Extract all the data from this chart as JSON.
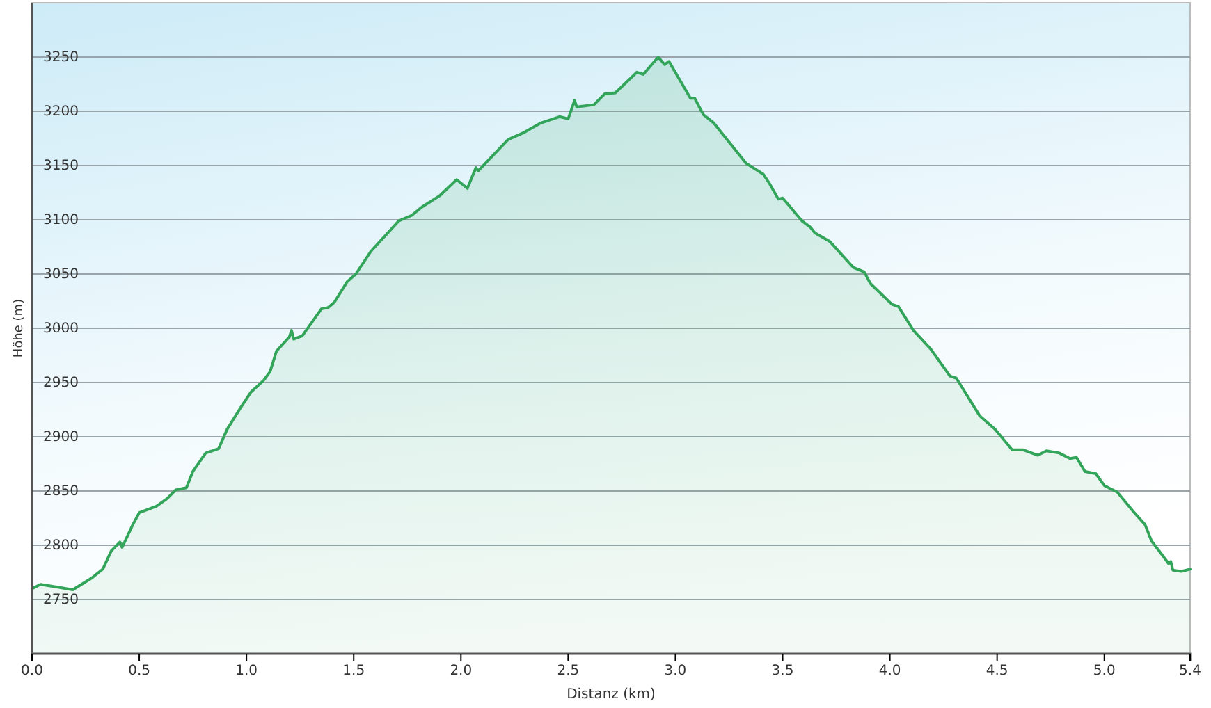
{
  "chart_data": {
    "type": "area",
    "xlabel": "Distanz  (km)",
    "ylabel": "Höhe (m)",
    "xlim": [
      0,
      5.4
    ],
    "ylim": [
      2700,
      3300
    ],
    "xticks": [
      {
        "value": 0,
        "label": "0.0"
      },
      0.5,
      {
        "value": 1,
        "label": "1.0"
      },
      1.5,
      {
        "value": 2,
        "label": "2.0"
      },
      2.5,
      {
        "value": 3,
        "label": "3.0"
      },
      3.5,
      {
        "value": 4,
        "label": "4.0"
      },
      4.5,
      {
        "value": 5,
        "label": "5.0"
      },
      5.4
    ],
    "yticks": [
      2750,
      2800,
      2850,
      2900,
      2950,
      3000,
      3050,
      3100,
      3150,
      3200,
      3250
    ],
    "grid": "y",
    "series": [
      {
        "color": "#33a55a",
        "x": [
          0,
          0.04,
          0.13,
          0.19,
          0.28,
          0.33,
          0.37,
          0.41,
          0.42,
          0.47,
          0.5,
          0.58,
          0.63,
          0.67,
          0.72,
          0.75,
          0.81,
          0.87,
          0.91,
          0.97,
          1.02,
          1.08,
          1.11,
          1.14,
          1.2,
          1.21,
          1.22,
          1.26,
          1.35,
          1.38,
          1.41,
          1.47,
          1.51,
          1.58,
          1.65,
          1.71,
          1.77,
          1.82,
          1.9,
          1.98,
          2.03,
          2.07,
          2.08,
          2.22,
          2.29,
          2.37,
          2.46,
          2.5,
          2.53,
          2.54,
          2.62,
          2.67,
          2.72,
          2.82,
          2.85,
          2.92,
          2.95,
          2.97,
          3.07,
          3.09,
          3.13,
          3.18,
          3.33,
          3.41,
          3.44,
          3.48,
          3.5,
          3.59,
          3.63,
          3.65,
          3.72,
          3.83,
          3.88,
          3.91,
          4.01,
          4.04,
          4.11,
          4.19,
          4.28,
          4.31,
          4.42,
          4.49,
          4.57,
          4.62,
          4.69,
          4.73,
          4.79,
          4.84,
          4.87,
          4.91,
          4.96,
          5,
          5.06,
          5.14,
          5.19,
          5.22,
          5.27,
          5.3,
          5.31,
          5.32,
          5.36,
          5.4
        ],
        "values": [
          2760,
          2764,
          2761,
          2759,
          2770,
          2778,
          2795,
          2803,
          2798,
          2819,
          2830,
          2836,
          2843,
          2851,
          2853,
          2868,
          2885,
          2889,
          2907,
          2926,
          2941,
          2952,
          2960,
          2979,
          2992,
          2998,
          2990,
          2993,
          3018,
          3019,
          3024,
          3043,
          3050,
          3071,
          3086,
          3099,
          3104,
          3112,
          3122,
          3137,
          3129,
          3148,
          3145,
          3174,
          3180,
          3189,
          3195,
          3193,
          3210,
          3204,
          3206,
          3216,
          3217,
          3236,
          3234,
          3250,
          3243,
          3246,
          3212,
          3212,
          3197,
          3189,
          3152,
          3142,
          3133,
          3119,
          3120,
          3099,
          3093,
          3088,
          3080,
          3056,
          3052,
          3041,
          3022,
          3020,
          2998,
          2981,
          2956,
          2954,
          2919,
          2907,
          2888,
          2888,
          2883,
          2887,
          2885,
          2880,
          2881,
          2868,
          2866,
          2855,
          2849,
          2830,
          2819,
          2804,
          2791,
          2783,
          2785,
          2777,
          2776,
          2778
        ]
      }
    ]
  }
}
